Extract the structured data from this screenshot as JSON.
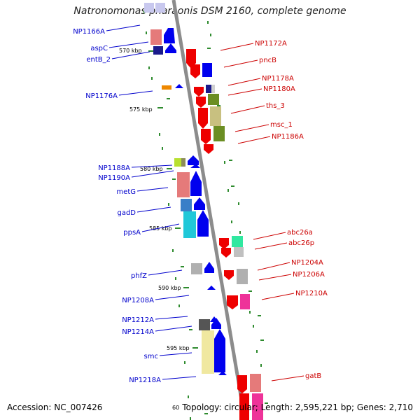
{
  "title": "Natronomonas pharaonis DSM 2160, complete genome",
  "accession_text": "Accession: NC_007426",
  "summary_text": "Topology: circular; Length: 2,595,221 bp; Genes: 2,710",
  "edge_tick_label": "60",
  "colors": {
    "backbone": "#8c8c8c",
    "tick": "#2e8b2e",
    "left_label": "#0000cc",
    "right_label": "#cc0000",
    "forward_strand": "#0000ee",
    "reverse_strand": "#ee0000"
  },
  "ruler_ticks": [
    {
      "label": "570 kbp"
    },
    {
      "label": "575 kbp"
    },
    {
      "label": "580 kbp"
    },
    {
      "label": "585 kbp"
    },
    {
      "label": "590 kbp"
    },
    {
      "label": "595 kbp"
    }
  ],
  "left_genes": [
    {
      "label": "NP1166A"
    },
    {
      "label": "aspC"
    },
    {
      "label": "entB_2"
    },
    {
      "label": "NP1176A"
    },
    {
      "label": "NP1188A"
    },
    {
      "label": "NP1190A"
    },
    {
      "label": "metG"
    },
    {
      "label": "gadD"
    },
    {
      "label": "ppsA"
    },
    {
      "label": "phfZ"
    },
    {
      "label": "NP1208A"
    },
    {
      "label": "NP1212A"
    },
    {
      "label": "NP1214A"
    },
    {
      "label": "smc"
    },
    {
      "label": "NP1218A"
    }
  ],
  "right_genes": [
    {
      "label": "NP1172A"
    },
    {
      "label": "pncB"
    },
    {
      "label": "NP1178A"
    },
    {
      "label": "NP1180A"
    },
    {
      "label": "ths_3"
    },
    {
      "label": "msc_1"
    },
    {
      "label": "NP1186A"
    },
    {
      "label": "abc26a"
    },
    {
      "label": "abc26p"
    },
    {
      "label": "NP1204A"
    },
    {
      "label": "NP1206A"
    },
    {
      "label": "NP1210A"
    },
    {
      "label": "gatB"
    }
  ]
}
